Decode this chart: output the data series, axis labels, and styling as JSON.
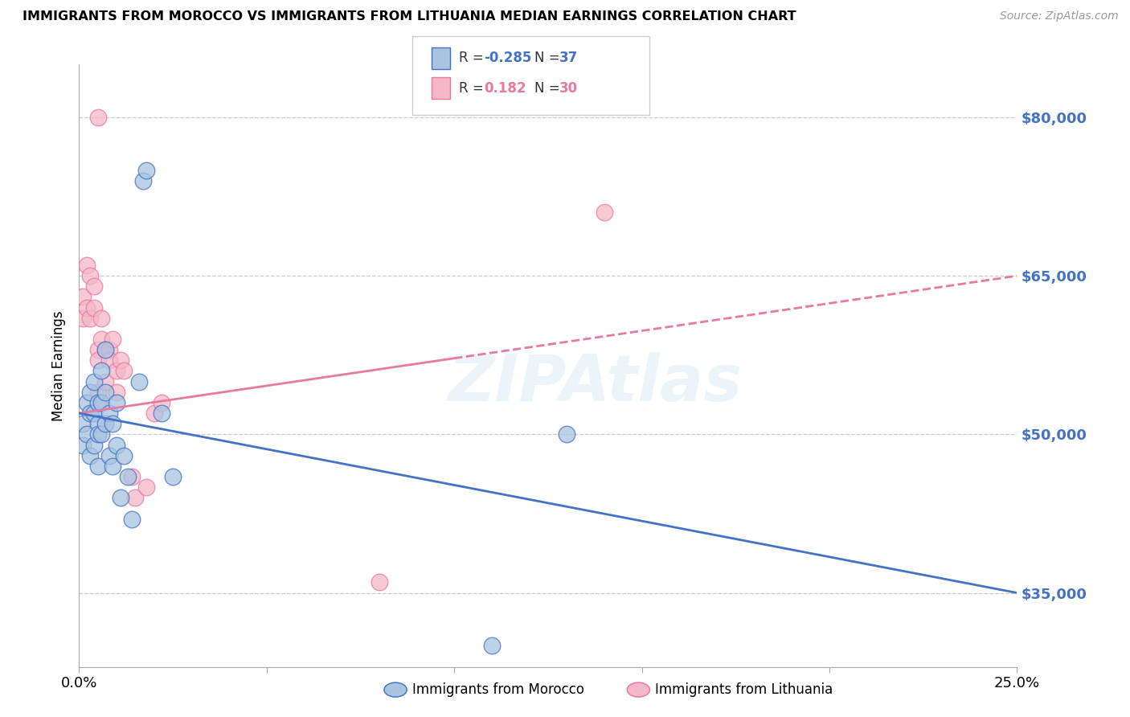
{
  "title": "IMMIGRANTS FROM MOROCCO VS IMMIGRANTS FROM LITHUANIA MEDIAN EARNINGS CORRELATION CHART",
  "source": "Source: ZipAtlas.com",
  "ylabel": "Median Earnings",
  "r1": "-0.285",
  "n1": "37",
  "r2": "0.182",
  "n2": "30",
  "yticks": [
    35000,
    50000,
    65000,
    80000
  ],
  "ytick_labels": [
    "$35,000",
    "$50,000",
    "$65,000",
    "$80,000"
  ],
  "xlim": [
    0.0,
    0.25
  ],
  "ylim": [
    28000,
    85000
  ],
  "color_morocco": "#a8c4e0",
  "color_lithuania": "#f4b8c8",
  "color_morocco_dark": "#4472c4",
  "color_lithuania_dark": "#e8799f",
  "watermark": "ZIPAtlas",
  "legend_label1": "Immigrants from Morocco",
  "legend_label2": "Immigrants from Lithuania",
  "morocco_x": [
    0.001,
    0.001,
    0.002,
    0.002,
    0.003,
    0.003,
    0.003,
    0.004,
    0.004,
    0.004,
    0.005,
    0.005,
    0.005,
    0.005,
    0.006,
    0.006,
    0.006,
    0.007,
    0.007,
    0.007,
    0.008,
    0.008,
    0.009,
    0.009,
    0.01,
    0.01,
    0.011,
    0.012,
    0.013,
    0.014,
    0.016,
    0.017,
    0.018,
    0.022,
    0.025,
    0.11,
    0.13
  ],
  "morocco_y": [
    51000,
    49000,
    53000,
    50000,
    54000,
    52000,
    48000,
    55000,
    52000,
    49000,
    53000,
    51000,
    50000,
    47000,
    56000,
    53000,
    50000,
    58000,
    54000,
    51000,
    52000,
    48000,
    51000,
    47000,
    53000,
    49000,
    44000,
    48000,
    46000,
    42000,
    55000,
    74000,
    75000,
    52000,
    46000,
    30000,
    50000
  ],
  "lithuania_x": [
    0.001,
    0.001,
    0.002,
    0.002,
    0.003,
    0.003,
    0.004,
    0.004,
    0.005,
    0.005,
    0.005,
    0.006,
    0.006,
    0.007,
    0.007,
    0.008,
    0.008,
    0.009,
    0.01,
    0.01,
    0.011,
    0.012,
    0.014,
    0.015,
    0.018,
    0.02,
    0.022,
    0.14,
    0.005,
    0.08
  ],
  "lithuania_y": [
    63000,
    61000,
    66000,
    62000,
    65000,
    61000,
    64000,
    62000,
    58000,
    57000,
    54000,
    61000,
    59000,
    58000,
    55000,
    58000,
    57000,
    59000,
    56000,
    54000,
    57000,
    56000,
    46000,
    44000,
    45000,
    52000,
    53000,
    71000,
    80000,
    36000
  ],
  "morocco_line_x": [
    0.0,
    0.25
  ],
  "morocco_line_y": [
    52000,
    35000
  ],
  "lithuania_line_x": [
    0.0,
    0.25
  ],
  "lithuania_line_y": [
    52000,
    65000
  ],
  "lithuania_line_solid_end": 0.1
}
